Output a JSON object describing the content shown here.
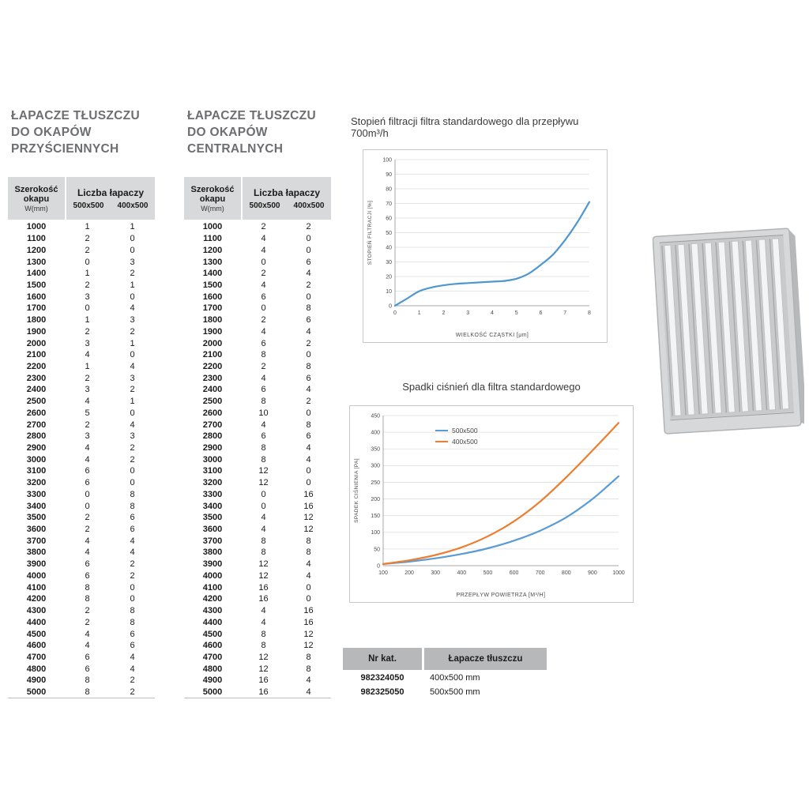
{
  "tables": {
    "header": {
      "width_line1": "Szerokość",
      "width_line2": "okapu",
      "width_unit": "W(mm)",
      "count_label": "Liczba łapaczy",
      "size_a": "500x500",
      "size_b": "400x500"
    },
    "wall": {
      "title_lines": [
        "ŁAPACZE TŁUSZCZU",
        "DO OKAPÓW",
        "PRZYŚCIENNYCH"
      ],
      "rows": [
        [
          1000,
          1,
          1
        ],
        [
          1100,
          2,
          0
        ],
        [
          1200,
          2,
          0
        ],
        [
          1300,
          0,
          3
        ],
        [
          1400,
          1,
          2
        ],
        [
          1500,
          2,
          1
        ],
        [
          1600,
          3,
          0
        ],
        [
          1700,
          0,
          4
        ],
        [
          1800,
          1,
          3
        ],
        [
          1900,
          2,
          2
        ],
        [
          2000,
          3,
          1
        ],
        [
          2100,
          4,
          0
        ],
        [
          2200,
          1,
          4
        ],
        [
          2300,
          2,
          3
        ],
        [
          2400,
          3,
          2
        ],
        [
          2500,
          4,
          1
        ],
        [
          2600,
          5,
          0
        ],
        [
          2700,
          2,
          4
        ],
        [
          2800,
          3,
          3
        ],
        [
          2900,
          4,
          2
        ],
        [
          3000,
          4,
          2
        ],
        [
          3100,
          6,
          0
        ],
        [
          3200,
          6,
          0
        ],
        [
          3300,
          0,
          8
        ],
        [
          3400,
          0,
          8
        ],
        [
          3500,
          2,
          6
        ],
        [
          3600,
          2,
          6
        ],
        [
          3700,
          4,
          4
        ],
        [
          3800,
          4,
          4
        ],
        [
          3900,
          6,
          2
        ],
        [
          4000,
          6,
          2
        ],
        [
          4100,
          8,
          0
        ],
        [
          4200,
          8,
          0
        ],
        [
          4300,
          2,
          8
        ],
        [
          4400,
          2,
          8
        ],
        [
          4500,
          4,
          6
        ],
        [
          4600,
          4,
          6
        ],
        [
          4700,
          6,
          4
        ],
        [
          4800,
          6,
          4
        ],
        [
          4900,
          8,
          2
        ],
        [
          5000,
          8,
          2
        ]
      ]
    },
    "central": {
      "title_lines": [
        "ŁAPACZE TŁUSZCZU",
        "DO OKAPÓW",
        "CENTRALNYCH"
      ],
      "rows": [
        [
          1000,
          2,
          2
        ],
        [
          1100,
          4,
          0
        ],
        [
          1200,
          4,
          0
        ],
        [
          1300,
          0,
          6
        ],
        [
          1400,
          2,
          4
        ],
        [
          1500,
          4,
          2
        ],
        [
          1600,
          6,
          0
        ],
        [
          1700,
          0,
          8
        ],
        [
          1800,
          2,
          6
        ],
        [
          1900,
          4,
          4
        ],
        [
          2000,
          6,
          2
        ],
        [
          2100,
          8,
          0
        ],
        [
          2200,
          2,
          8
        ],
        [
          2300,
          4,
          6
        ],
        [
          2400,
          6,
          4
        ],
        [
          2500,
          8,
          2
        ],
        [
          2600,
          10,
          0
        ],
        [
          2700,
          4,
          8
        ],
        [
          2800,
          6,
          6
        ],
        [
          2900,
          8,
          4
        ],
        [
          3000,
          8,
          4
        ],
        [
          3100,
          12,
          0
        ],
        [
          3200,
          12,
          0
        ],
        [
          3300,
          0,
          16
        ],
        [
          3400,
          0,
          16
        ],
        [
          3500,
          4,
          12
        ],
        [
          3600,
          4,
          12
        ],
        [
          3700,
          8,
          8
        ],
        [
          3800,
          8,
          8
        ],
        [
          3900,
          12,
          4
        ],
        [
          4000,
          12,
          4
        ],
        [
          4100,
          16,
          0
        ],
        [
          4200,
          16,
          0
        ],
        [
          4300,
          4,
          16
        ],
        [
          4400,
          4,
          16
        ],
        [
          4500,
          8,
          12
        ],
        [
          4600,
          8,
          12
        ],
        [
          4700,
          12,
          8
        ],
        [
          4800,
          12,
          8
        ],
        [
          4900,
          16,
          4
        ],
        [
          5000,
          16,
          4
        ]
      ]
    }
  },
  "chart_data": [
    {
      "type": "line",
      "title": "Stopień filtracji filtra standardowego dla przepływu 700m³/h",
      "xlabel": "WIELKOŚĆ CZĄSTKI [μm]",
      "ylabel": "STOPIEŃ FILTRACJI [%]",
      "xlim": [
        0,
        8
      ],
      "ylim": [
        0,
        100
      ],
      "xticks": [
        0,
        1,
        2,
        3,
        4,
        5,
        6,
        7,
        8
      ],
      "yticks": [
        0,
        10,
        20,
        30,
        40,
        50,
        60,
        70,
        80,
        90,
        100
      ],
      "grid": "horizontal",
      "legend": "none",
      "series": [
        {
          "color": "#4f97cf",
          "x": [
            0,
            0.5,
            1,
            1.5,
            2,
            2.5,
            3,
            3.5,
            4,
            4.5,
            5,
            5.5,
            6,
            6.5,
            7,
            7.5,
            8
          ],
          "y": [
            0,
            5,
            10,
            12.5,
            14,
            15,
            15.5,
            16,
            16.5,
            17,
            18.5,
            22,
            28,
            35,
            45,
            57,
            71
          ]
        }
      ]
    },
    {
      "type": "line",
      "title": "Spadki ciśnień dla filtra standardowego",
      "xlabel": "PRZEPŁYW POWIETRZA [M³/H]",
      "ylabel": "SPADEK CIŚNIENIA [PA]",
      "xlim": [
        100,
        1000
      ],
      "ylim": [
        0,
        450
      ],
      "xticks": [
        100,
        200,
        300,
        400,
        500,
        600,
        700,
        800,
        900,
        1000
      ],
      "yticks": [
        0,
        50,
        100,
        150,
        200,
        250,
        300,
        350,
        400,
        450
      ],
      "grid": "horizontal",
      "legend_position": "top-left-inside",
      "x": [
        100,
        200,
        300,
        400,
        500,
        600,
        700,
        800,
        900,
        1000
      ],
      "series": [
        {
          "name": "500x500",
          "color": "#5b9bd5",
          "values": [
            5,
            12,
            22,
            35,
            52,
            75,
            105,
            145,
            200,
            268
          ]
        },
        {
          "name": "400x500",
          "color": "#ed7d31",
          "values": [
            5,
            16,
            32,
            55,
            88,
            133,
            192,
            265,
            345,
            428
          ]
        }
      ]
    }
  ],
  "catalog_table": {
    "headers": [
      "Nr kat.",
      "Łapacze tłuszczu"
    ],
    "rows": [
      [
        "982324050",
        "400x500 mm"
      ],
      [
        "982325050",
        "500x500 mm"
      ]
    ]
  },
  "figure": {
    "name": "baffle-grease-filter-photo"
  }
}
